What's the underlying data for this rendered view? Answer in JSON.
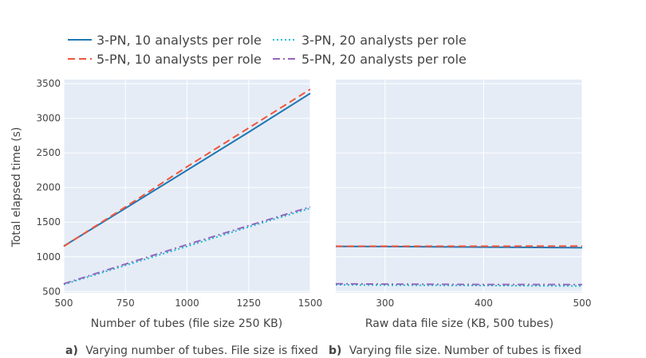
{
  "legend": {
    "items": [
      {
        "name": "3-PN, 10 analysts per role",
        "color": "#1f77b4",
        "dash": "solid"
      },
      {
        "name": "3-PN, 20 analysts per role",
        "color": "#17becf",
        "dash": "dot"
      },
      {
        "name": "5-PN, 10 analysts per role",
        "color": "#ef553b",
        "dash": "dash"
      },
      {
        "name": "5-PN, 20 analysts per role",
        "color": "#9467bd",
        "dash": "dashdot"
      }
    ]
  },
  "chart_data": [
    {
      "type": "line",
      "xlabel": "Number of tubes (file size 250 KB)",
      "ylabel": "Total elapsed time (s)",
      "caption_prefix": "a)",
      "caption": "Varying number of tubes. File size is fixed",
      "xlim": [
        500,
        1500
      ],
      "ylim": [
        480,
        3560
      ],
      "xticks": [
        "500",
        "750",
        "1000",
        "1250",
        "1500"
      ],
      "yticks": [
        "500",
        "1000",
        "1500",
        "2000",
        "2500",
        "3000",
        "3500"
      ],
      "grid": true,
      "x": [
        500,
        750,
        1000,
        1250,
        1500
      ],
      "series": [
        {
          "name": "3-PN, 10 analysts per role",
          "values": [
            1155,
            1700,
            2250,
            2800,
            3360
          ]
        },
        {
          "name": "3-PN, 20 analysts per role",
          "values": [
            600,
            875,
            1150,
            1430,
            1700
          ]
        },
        {
          "name": "5-PN, 10 analysts per role",
          "values": [
            1150,
            1720,
            2300,
            2860,
            3420
          ]
        },
        {
          "name": "5-PN, 20 analysts per role",
          "values": [
            610,
            895,
            1175,
            1450,
            1720
          ]
        }
      ]
    },
    {
      "type": "line",
      "xlabel": "Raw data file size (KB, 500 tubes)",
      "caption_prefix": "b)",
      "caption": "Varying file size. Number of tubes is fixed",
      "xlim": [
        250,
        500
      ],
      "ylim": [
        480,
        3560
      ],
      "xticks": [
        "300",
        "400",
        "500"
      ],
      "grid": true,
      "x": [
        250,
        300,
        400,
        500
      ],
      "series": [
        {
          "name": "3-PN, 10 analysts per role",
          "values": [
            1150,
            1148,
            1140,
            1130
          ]
        },
        {
          "name": "3-PN, 20 analysts per role",
          "values": [
            595,
            590,
            585,
            578
          ]
        },
        {
          "name": "5-PN, 10 analysts per role",
          "values": [
            1152,
            1152,
            1152,
            1155
          ]
        },
        {
          "name": "5-PN, 20 analysts per role",
          "values": [
            610,
            605,
            600,
            598
          ]
        }
      ]
    }
  ]
}
